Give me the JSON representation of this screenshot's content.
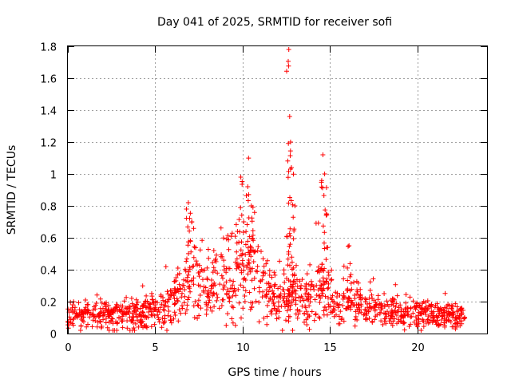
{
  "chart_data": {
    "type": "scatter",
    "title": "Day 041 of 2025, SRMTID for receiver sofi",
    "xlabel": "GPS time / hours",
    "ylabel": "SRMTID / TECUs",
    "xlim": [
      0,
      24
    ],
    "ylim": [
      0,
      1.8
    ],
    "xticks": [
      0,
      5,
      10,
      15,
      20
    ],
    "yticks": [
      0,
      0.2,
      0.4,
      0.6,
      0.8,
      1,
      1.2,
      1.4,
      1.6,
      1.8
    ],
    "ytick_labels": [
      "0",
      "0.2",
      "0.4",
      "0.6",
      "0.8",
      "1",
      "1.2",
      "1.4",
      "1.6",
      "1.8"
    ],
    "grid": true,
    "marker": "+",
    "color": "#ff0000",
    "envelope": {
      "description": "Approximate central trend of SRMTID values (hours, TECUs)",
      "x": [
        0,
        1,
        2,
        3,
        4,
        5,
        5.5,
        6,
        6.5,
        7,
        7.5,
        8,
        8.5,
        9,
        9.5,
        10,
        10.5,
        11,
        11.5,
        12,
        12.5,
        13,
        13.5,
        14,
        14.5,
        15,
        15.5,
        16,
        16.5,
        17,
        18,
        19,
        20,
        21,
        22,
        22.8
      ],
      "y": [
        0.1,
        0.12,
        0.11,
        0.12,
        0.13,
        0.14,
        0.15,
        0.2,
        0.28,
        0.35,
        0.33,
        0.32,
        0.33,
        0.35,
        0.38,
        0.4,
        0.42,
        0.36,
        0.28,
        0.2,
        0.22,
        0.25,
        0.2,
        0.22,
        0.28,
        0.2,
        0.17,
        0.2,
        0.17,
        0.15,
        0.14,
        0.13,
        0.12,
        0.11,
        0.1,
        0.1
      ]
    },
    "spikes": [
      {
        "x": 6.9,
        "y": 0.82
      },
      {
        "x": 7.1,
        "y": 0.7
      },
      {
        "x": 9.9,
        "y": 0.98
      },
      {
        "x": 10.3,
        "y": 0.92
      },
      {
        "x": 10.5,
        "y": 0.8
      },
      {
        "x": 12.65,
        "y": 1.78
      },
      {
        "x": 12.7,
        "y": 1.36
      },
      {
        "x": 12.75,
        "y": 1.2
      },
      {
        "x": 12.8,
        "y": 1.04
      },
      {
        "x": 13.0,
        "y": 0.8
      },
      {
        "x": 14.6,
        "y": 1.12
      },
      {
        "x": 14.7,
        "y": 1.0
      },
      {
        "x": 14.8,
        "y": 0.75
      },
      {
        "x": 16.1,
        "y": 0.55
      }
    ]
  }
}
